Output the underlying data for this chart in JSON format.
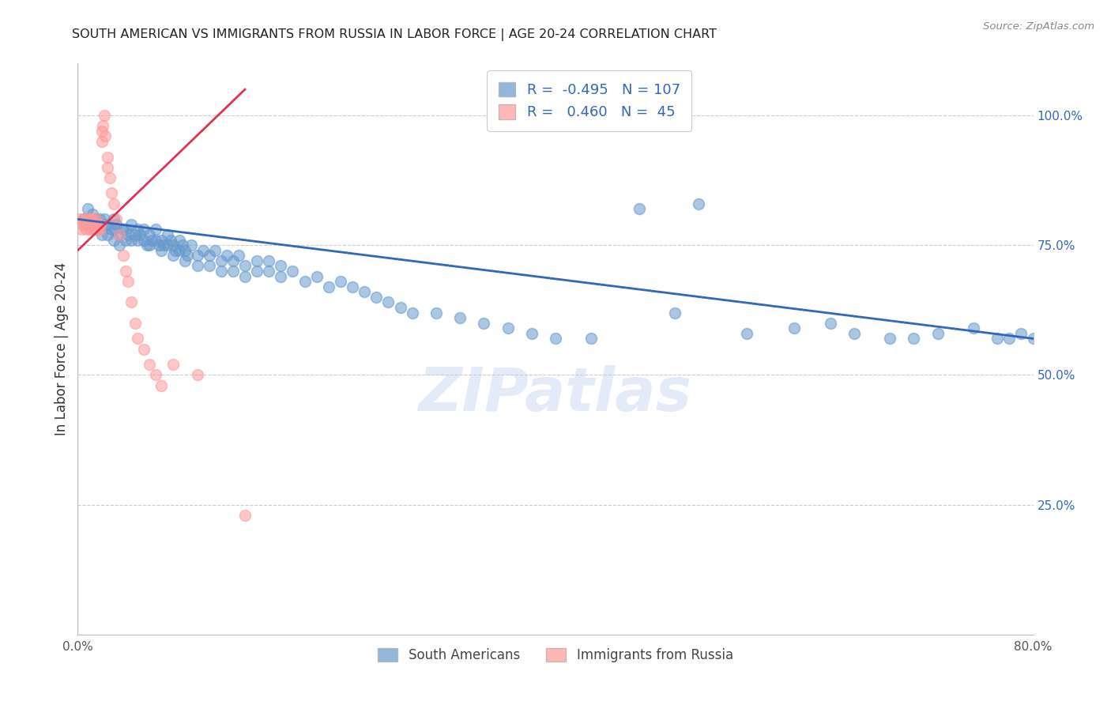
{
  "title": "SOUTH AMERICAN VS IMMIGRANTS FROM RUSSIA IN LABOR FORCE | AGE 20-24 CORRELATION CHART",
  "source": "Source: ZipAtlas.com",
  "ylabel": "In Labor Force | Age 20-24",
  "xlim": [
    0.0,
    0.8
  ],
  "ylim": [
    0.0,
    1.1
  ],
  "xticks": [
    0.0,
    0.1,
    0.2,
    0.3,
    0.4,
    0.5,
    0.6,
    0.7,
    0.8
  ],
  "yticks_right": [
    0.0,
    0.25,
    0.5,
    0.75,
    1.0
  ],
  "yticklabels_right": [
    "",
    "25.0%",
    "50.0%",
    "75.0%",
    "100.0%"
  ],
  "blue_R": -0.495,
  "blue_N": 107,
  "pink_R": 0.46,
  "pink_N": 45,
  "blue_color": "#6699CC",
  "pink_color": "#FF9999",
  "blue_line_color": "#3366BB",
  "pink_line_color": "#DD3355",
  "watermark": "ZIPatlas",
  "watermark_color": "#BBCCEE",
  "legend_label_blue": "South Americans",
  "legend_label_pink": "Immigrants from Russia",
  "blue_scatter_x": [
    0.005,
    0.008,
    0.01,
    0.012,
    0.015,
    0.015,
    0.018,
    0.02,
    0.02,
    0.022,
    0.025,
    0.025,
    0.028,
    0.03,
    0.03,
    0.03,
    0.032,
    0.035,
    0.035,
    0.038,
    0.04,
    0.04,
    0.042,
    0.045,
    0.045,
    0.048,
    0.05,
    0.05,
    0.052,
    0.055,
    0.055,
    0.058,
    0.06,
    0.06,
    0.062,
    0.065,
    0.065,
    0.068,
    0.07,
    0.07,
    0.072,
    0.075,
    0.075,
    0.078,
    0.08,
    0.08,
    0.082,
    0.085,
    0.085,
    0.088,
    0.09,
    0.09,
    0.092,
    0.095,
    0.1,
    0.1,
    0.105,
    0.11,
    0.11,
    0.115,
    0.12,
    0.12,
    0.125,
    0.13,
    0.13,
    0.135,
    0.14,
    0.14,
    0.15,
    0.15,
    0.16,
    0.16,
    0.17,
    0.17,
    0.18,
    0.19,
    0.2,
    0.21,
    0.22,
    0.23,
    0.24,
    0.25,
    0.26,
    0.27,
    0.28,
    0.3,
    0.32,
    0.34,
    0.36,
    0.38,
    0.4,
    0.43,
    0.47,
    0.5,
    0.52,
    0.56,
    0.6,
    0.63,
    0.65,
    0.68,
    0.7,
    0.72,
    0.75,
    0.77,
    0.78,
    0.79,
    0.8
  ],
  "blue_scatter_y": [
    0.8,
    0.82,
    0.79,
    0.81,
    0.8,
    0.78,
    0.8,
    0.79,
    0.77,
    0.8,
    0.79,
    0.77,
    0.78,
    0.8,
    0.78,
    0.76,
    0.79,
    0.77,
    0.75,
    0.78,
    0.78,
    0.76,
    0.77,
    0.79,
    0.76,
    0.77,
    0.78,
    0.76,
    0.77,
    0.78,
    0.76,
    0.75,
    0.77,
    0.75,
    0.76,
    0.78,
    0.76,
    0.75,
    0.76,
    0.74,
    0.75,
    0.77,
    0.75,
    0.76,
    0.75,
    0.73,
    0.74,
    0.76,
    0.74,
    0.75,
    0.74,
    0.72,
    0.73,
    0.75,
    0.73,
    0.71,
    0.74,
    0.73,
    0.71,
    0.74,
    0.72,
    0.7,
    0.73,
    0.72,
    0.7,
    0.73,
    0.71,
    0.69,
    0.72,
    0.7,
    0.72,
    0.7,
    0.71,
    0.69,
    0.7,
    0.68,
    0.69,
    0.67,
    0.68,
    0.67,
    0.66,
    0.65,
    0.64,
    0.63,
    0.62,
    0.62,
    0.61,
    0.6,
    0.59,
    0.58,
    0.57,
    0.57,
    0.82,
    0.62,
    0.83,
    0.58,
    0.59,
    0.6,
    0.58,
    0.57,
    0.57,
    0.58,
    0.59,
    0.57,
    0.57,
    0.58,
    0.57
  ],
  "pink_scatter_x": [
    0.002,
    0.003,
    0.004,
    0.005,
    0.006,
    0.007,
    0.008,
    0.009,
    0.01,
    0.01,
    0.011,
    0.012,
    0.013,
    0.014,
    0.015,
    0.015,
    0.016,
    0.017,
    0.018,
    0.019,
    0.02,
    0.02,
    0.021,
    0.022,
    0.023,
    0.025,
    0.025,
    0.027,
    0.028,
    0.03,
    0.032,
    0.035,
    0.038,
    0.04,
    0.042,
    0.045,
    0.048,
    0.05,
    0.055,
    0.06,
    0.065,
    0.07,
    0.08,
    0.1,
    0.14
  ],
  "pink_scatter_y": [
    0.8,
    0.78,
    0.79,
    0.8,
    0.79,
    0.78,
    0.8,
    0.79,
    0.8,
    0.78,
    0.79,
    0.8,
    0.78,
    0.79,
    0.8,
    0.78,
    0.79,
    0.78,
    0.78,
    0.79,
    0.95,
    0.97,
    0.98,
    1.0,
    0.96,
    0.92,
    0.9,
    0.88,
    0.85,
    0.83,
    0.8,
    0.77,
    0.73,
    0.7,
    0.68,
    0.64,
    0.6,
    0.57,
    0.55,
    0.52,
    0.5,
    0.48,
    0.52,
    0.5,
    0.23
  ]
}
